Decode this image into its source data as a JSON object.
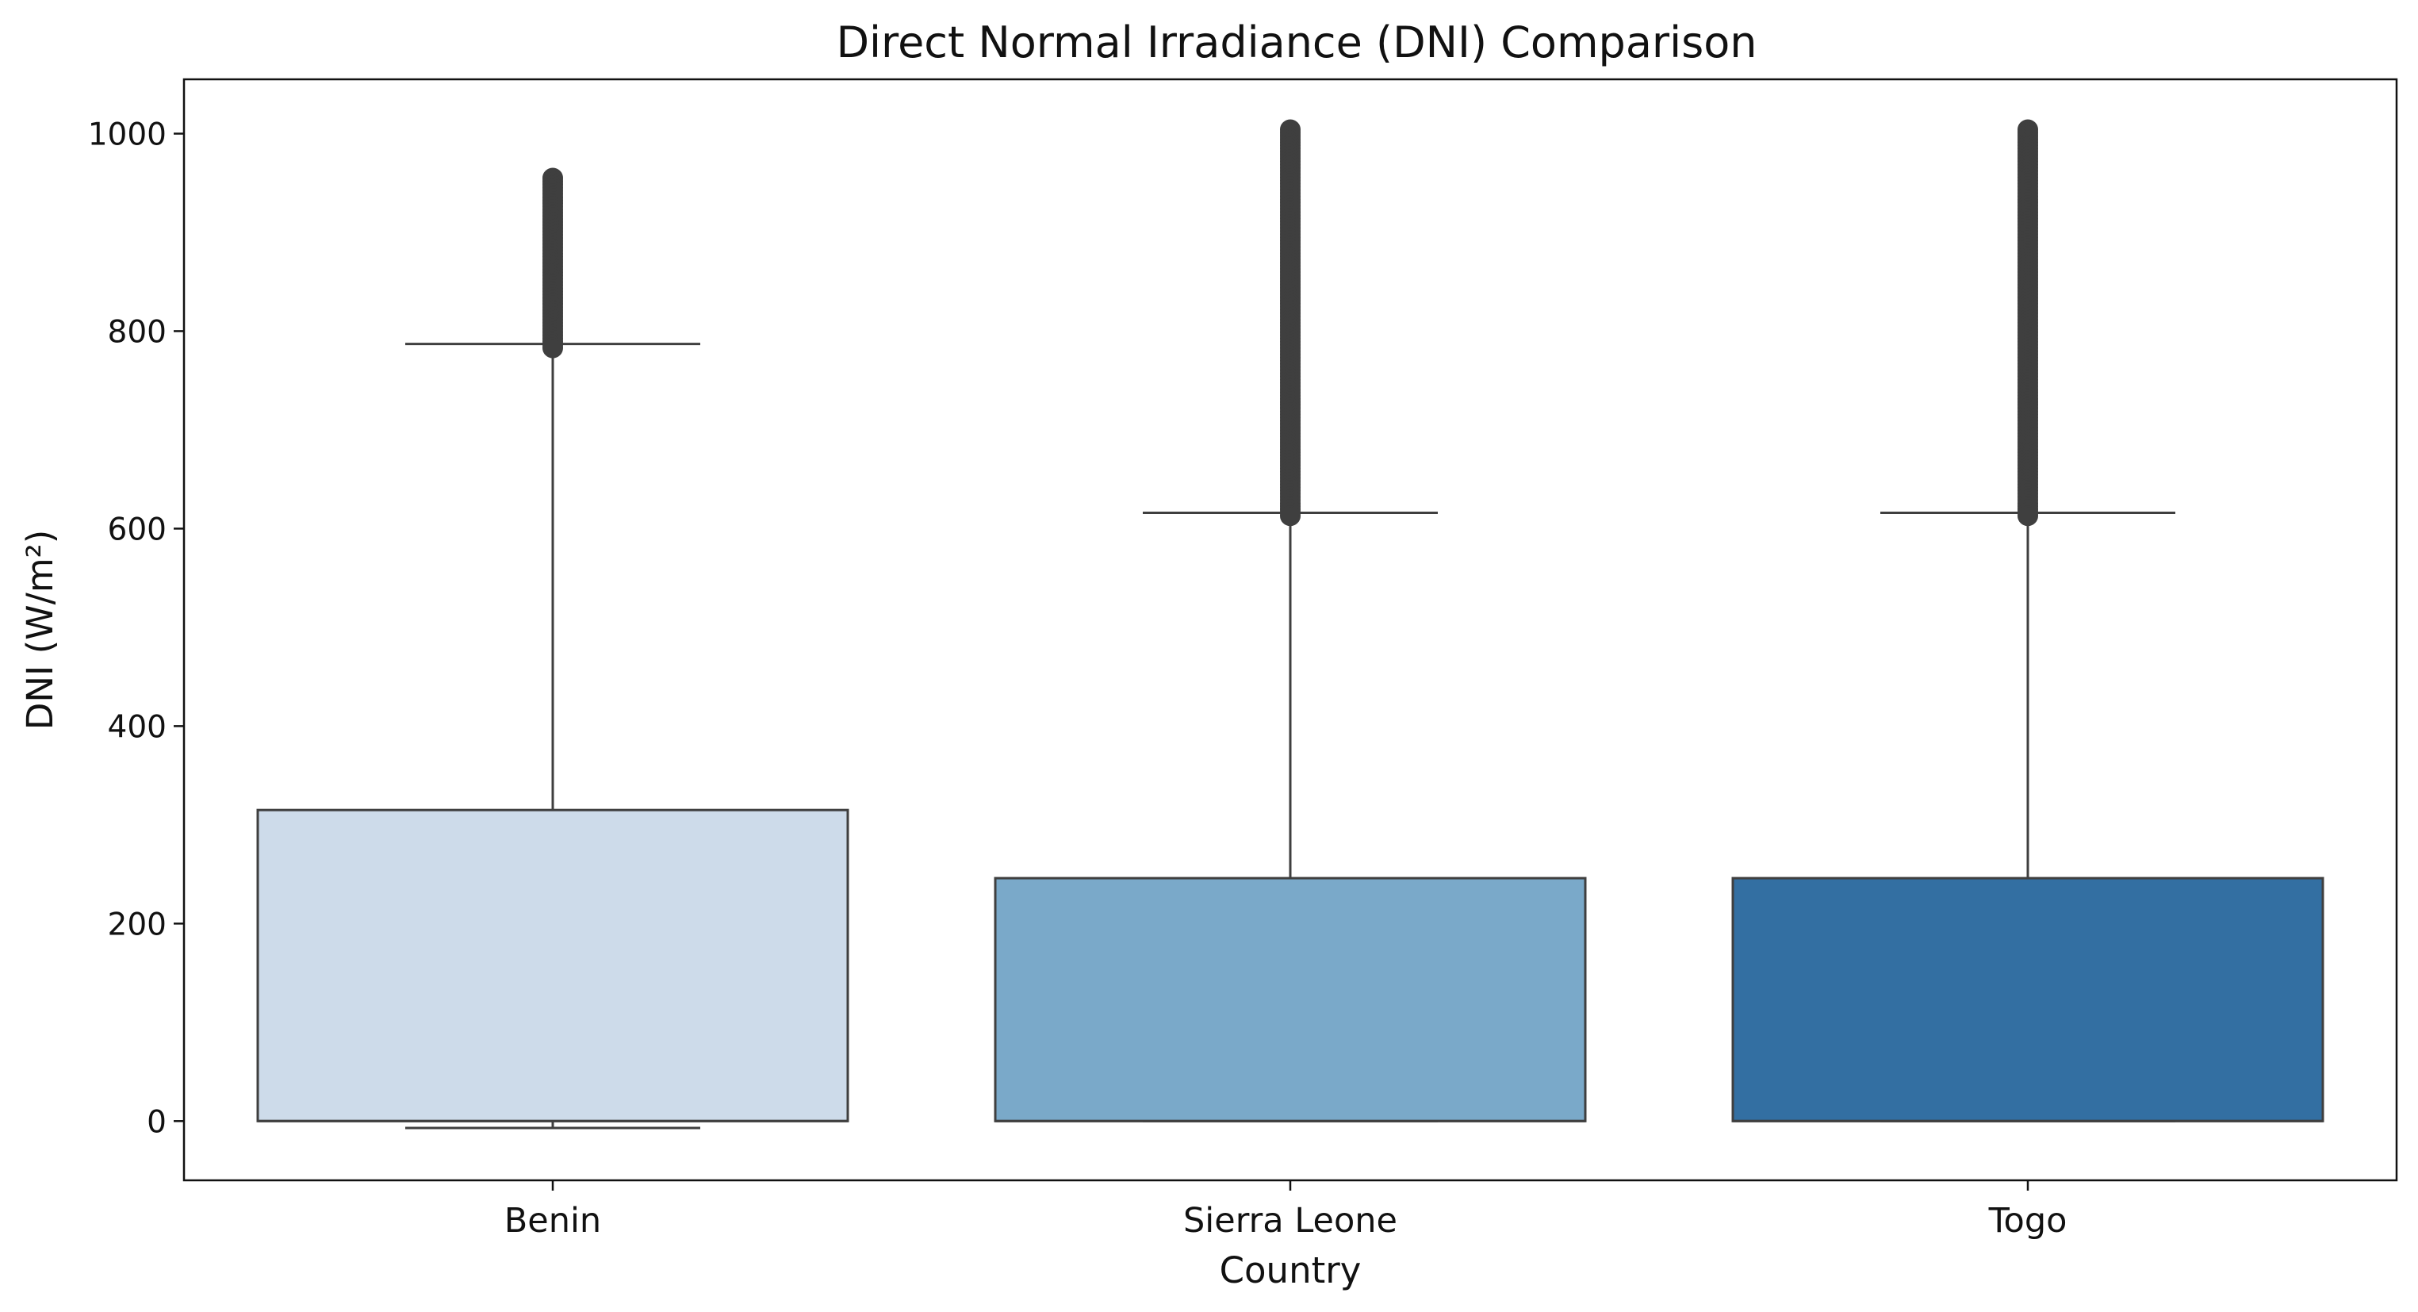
{
  "chart_data": {
    "type": "box",
    "title": "Direct Normal Irradiance (DNI) Comparison",
    "xlabel": "Country",
    "ylabel": "DNI (W/m²)",
    "ylim": [
      -60,
      1055
    ],
    "yticks": [
      0,
      200,
      400,
      600,
      800,
      1000
    ],
    "grid": false,
    "legend": "none",
    "categories": [
      "Benin",
      "Sierra Leone",
      "Togo"
    ],
    "boxes": [
      {
        "category": "Benin",
        "color": "#cddbea",
        "whisker_low": -7,
        "q1": 0,
        "median": 0,
        "q3": 315,
        "whisker_high": 787,
        "outlier_min": 783,
        "outlier_max": 955
      },
      {
        "category": "Sierra Leone",
        "color": "#7aa9c9",
        "whisker_low": 0,
        "q1": 0,
        "median": 0,
        "q3": 246,
        "whisker_high": 616,
        "outlier_min": 613,
        "outlier_max": 1004
      },
      {
        "category": "Togo",
        "color": "#336fa2",
        "whisker_low": 0,
        "q1": 0,
        "median": 0,
        "q3": 246,
        "whisker_high": 616,
        "outlier_min": 613,
        "outlier_max": 1004
      }
    ],
    "line_color": "#3f3f3f"
  }
}
